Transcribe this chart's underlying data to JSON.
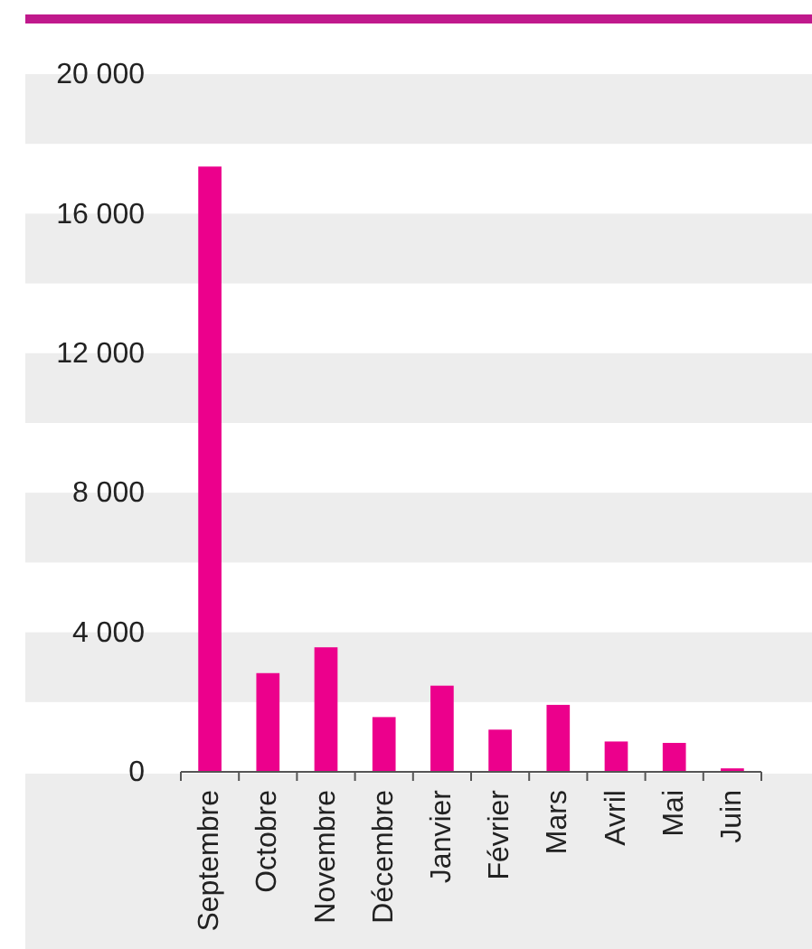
{
  "chart_data": {
    "type": "bar",
    "categories": [
      "Septembre",
      "Octobre",
      "Novembre",
      "Décembre",
      "Janvier",
      "Février",
      "Mars",
      "Avril",
      "Mai",
      "Juin"
    ],
    "values": [
      17350,
      2830,
      3570,
      1570,
      2470,
      1210,
      1920,
      870,
      830,
      100
    ],
    "color": "#ec008c",
    "ylim": [
      0,
      20000
    ],
    "yticks": [
      0,
      {
        "value": 4000,
        "label": "4 000"
      },
      {
        "value": 8000,
        "label": "8 000"
      },
      {
        "value": 12000,
        "label": "12 000"
      },
      {
        "value": 16000,
        "label": "16 000"
      },
      {
        "value": 20000,
        "label": "20 000"
      }
    ],
    "bands": [
      {
        "axis": "y",
        "from": 18000,
        "to": 20000,
        "color": "#ededed"
      },
      {
        "axis": "y",
        "from": 14000,
        "to": 16000,
        "color": "#ededed"
      },
      {
        "axis": "y",
        "from": 10000,
        "to": 12000,
        "color": "#ededed"
      },
      {
        "axis": "y",
        "from": 6000,
        "to": 8000,
        "color": "#ededed"
      },
      {
        "axis": "y",
        "from": 2000,
        "to": 4000,
        "color": "#ededed"
      }
    ]
  }
}
